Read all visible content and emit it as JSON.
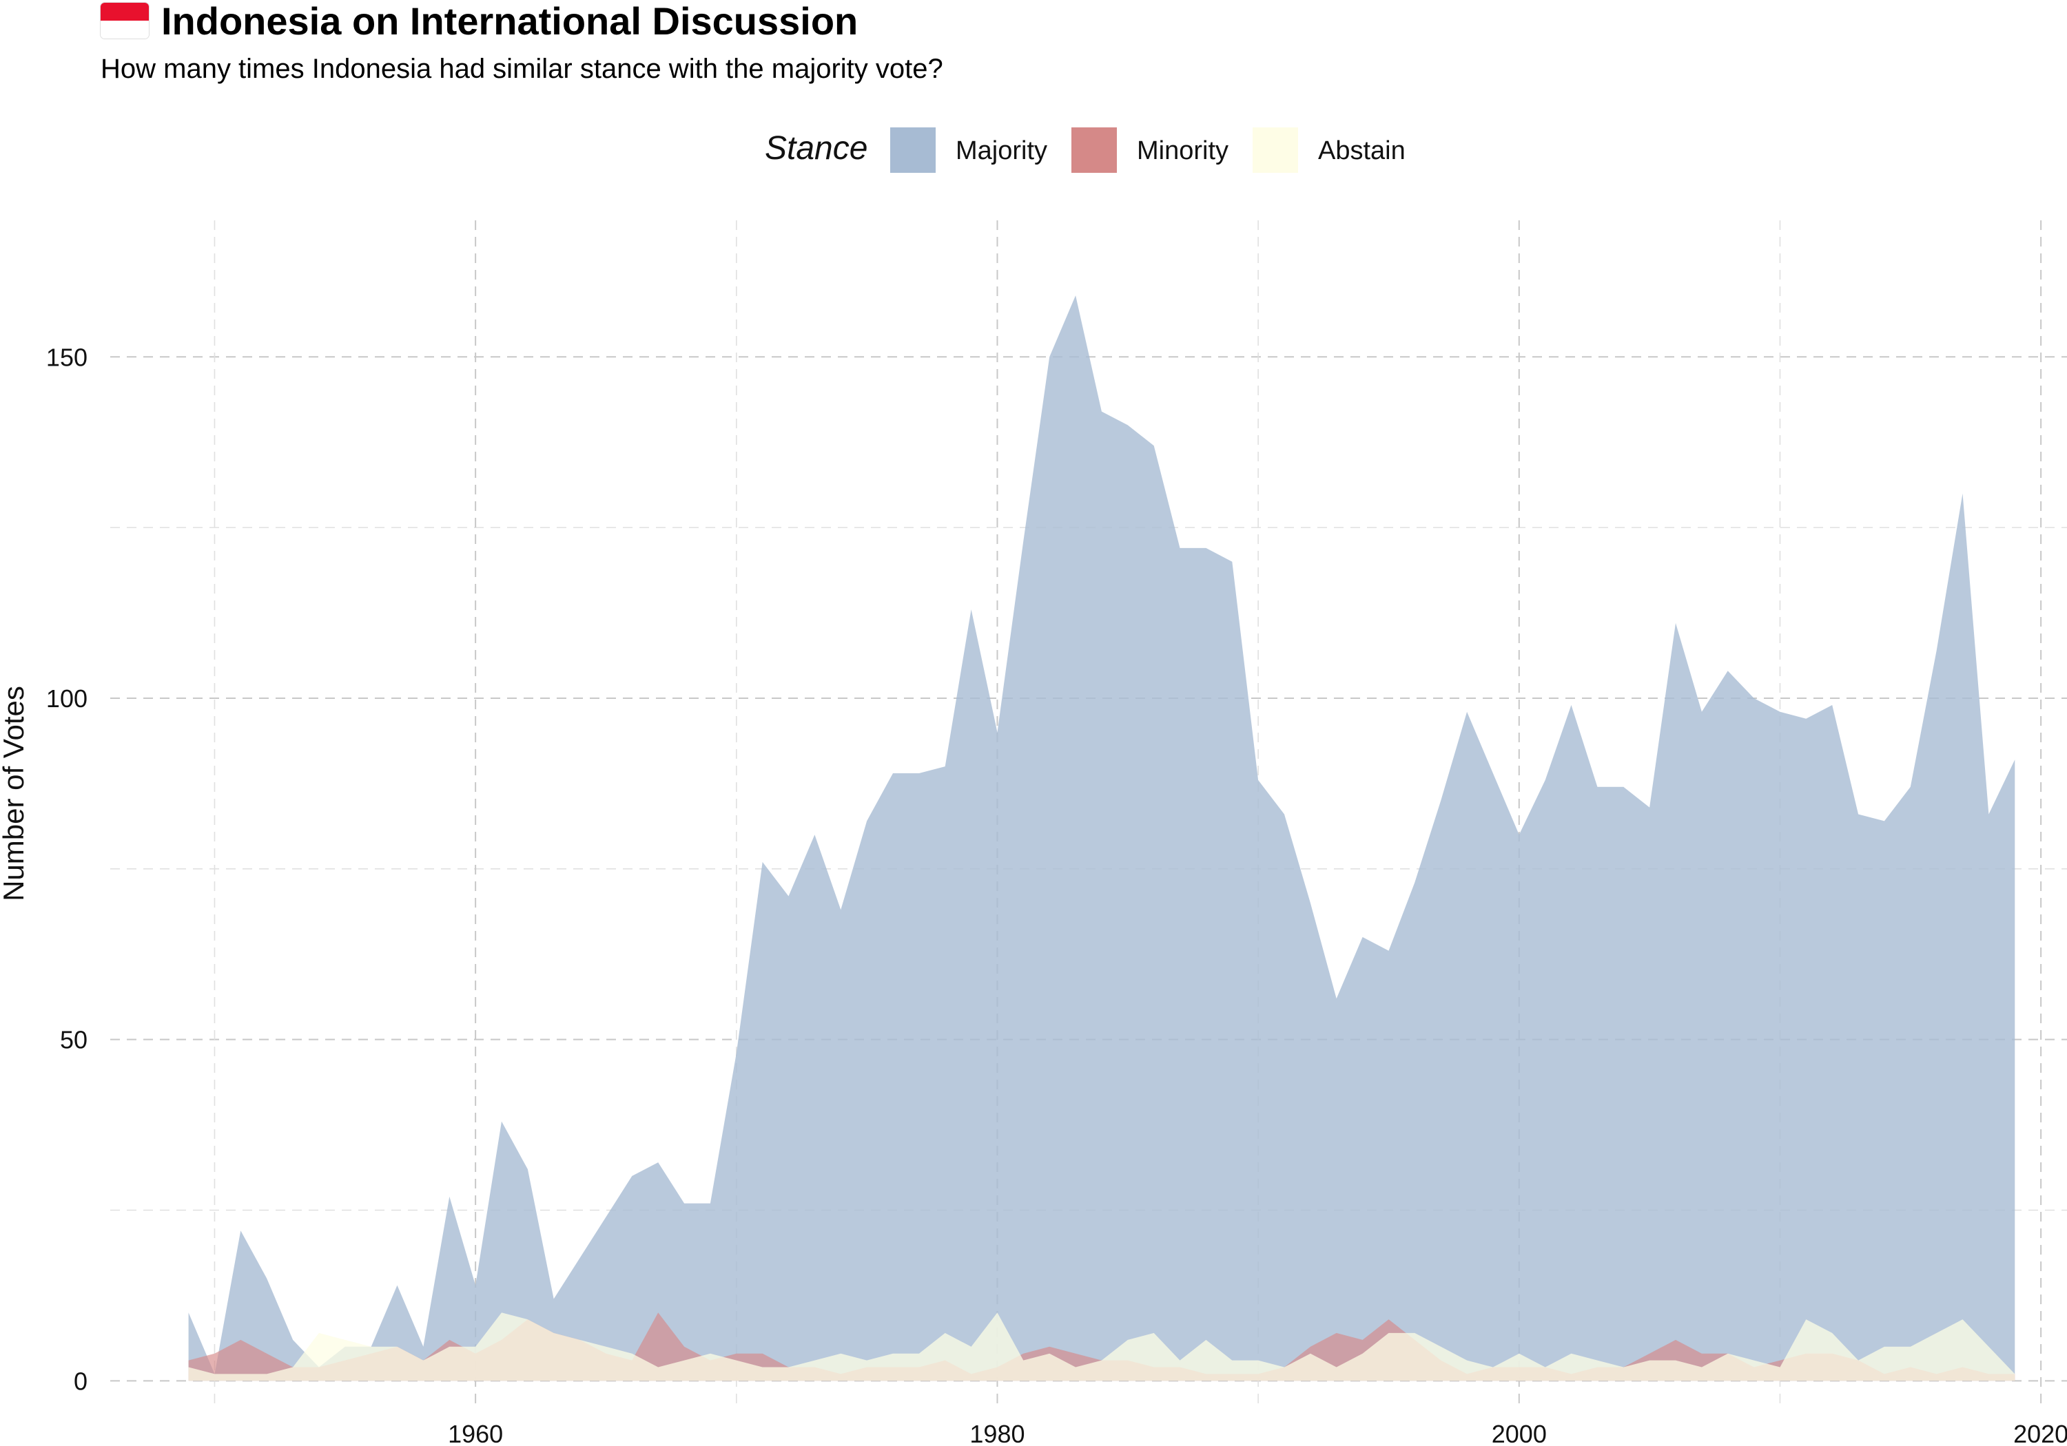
{
  "header": {
    "title": "Indonesia on International Discussion",
    "subtitle": "How many times Indonesia had similar stance with the majority vote?"
  },
  "legend": {
    "title": "Stance",
    "items": [
      {
        "label": "Majority",
        "color": "#a7bbd3"
      },
      {
        "label": "Minority",
        "color": "#d58988"
      },
      {
        "label": "Abstain",
        "color": "#fefde6"
      }
    ]
  },
  "chart_data": {
    "type": "area",
    "title": "Indonesia on International Discussion",
    "subtitle": "How many times Indonesia had similar stance with the majority vote?",
    "xlabel": "",
    "ylabel": "Number of Votes",
    "xlim": [
      1946,
      2021
    ],
    "ylim": [
      -4,
      170
    ],
    "xticks": [
      1960,
      1980,
      2000,
      2020
    ],
    "yticks": [
      0,
      50,
      100,
      150
    ],
    "grid": true,
    "legend_position": "top",
    "series": [
      {
        "name": "Majority",
        "color": "#a7bbd3",
        "opacity": 0.8,
        "points": [
          [
            1949,
            10
          ],
          [
            1950,
            1
          ],
          [
            1951,
            22
          ],
          [
            1952,
            15
          ],
          [
            1953,
            6
          ],
          [
            1954,
            2
          ],
          [
            1955,
            5
          ],
          [
            1956,
            5
          ],
          [
            1957,
            14
          ],
          [
            1958,
            5
          ],
          [
            1959,
            27
          ],
          [
            1960,
            14
          ],
          [
            1961,
            38
          ],
          [
            1962,
            31
          ],
          [
            1963,
            12
          ],
          [
            1964,
            18
          ],
          [
            1965,
            24
          ],
          [
            1966,
            30
          ],
          [
            1967,
            32
          ],
          [
            1968,
            26
          ],
          [
            1969,
            26
          ],
          [
            1970,
            48
          ],
          [
            1971,
            76
          ],
          [
            1972,
            71
          ],
          [
            1973,
            80
          ],
          [
            1974,
            69
          ],
          [
            1975,
            82
          ],
          [
            1976,
            89
          ],
          [
            1977,
            89
          ],
          [
            1978,
            90
          ],
          [
            1979,
            113
          ],
          [
            1980,
            95
          ],
          [
            1981,
            123
          ],
          [
            1982,
            150
          ],
          [
            1983,
            159
          ],
          [
            1984,
            142
          ],
          [
            1985,
            140
          ],
          [
            1986,
            137
          ],
          [
            1987,
            122
          ],
          [
            1988,
            122
          ],
          [
            1989,
            120
          ],
          [
            1990,
            88
          ],
          [
            1991,
            83
          ],
          [
            1992,
            70
          ],
          [
            1993,
            56
          ],
          [
            1994,
            65
          ],
          [
            1995,
            63
          ],
          [
            1996,
            73
          ],
          [
            1997,
            85
          ],
          [
            1998,
            98
          ],
          [
            1999,
            89
          ],
          [
            2000,
            80
          ],
          [
            2001,
            88
          ],
          [
            2002,
            99
          ],
          [
            2003,
            87
          ],
          [
            2004,
            87
          ],
          [
            2005,
            84
          ],
          [
            2006,
            111
          ],
          [
            2007,
            98
          ],
          [
            2008,
            104
          ],
          [
            2009,
            100
          ],
          [
            2010,
            98
          ],
          [
            2011,
            97
          ],
          [
            2012,
            99
          ],
          [
            2013,
            83
          ],
          [
            2014,
            82
          ],
          [
            2015,
            87
          ],
          [
            2016,
            107
          ],
          [
            2017,
            130
          ],
          [
            2018,
            83
          ],
          [
            2019,
            91
          ]
        ]
      },
      {
        "name": "Minority",
        "color": "#d58988",
        "opacity": 0.65,
        "points": [
          [
            1949,
            3
          ],
          [
            1950,
            4
          ],
          [
            1951,
            6
          ],
          [
            1952,
            4
          ],
          [
            1953,
            2
          ],
          [
            1954,
            2
          ],
          [
            1955,
            3
          ],
          [
            1956,
            4
          ],
          [
            1957,
            5
          ],
          [
            1958,
            3
          ],
          [
            1959,
            6
          ],
          [
            1960,
            4
          ],
          [
            1961,
            6
          ],
          [
            1962,
            9
          ],
          [
            1963,
            7
          ],
          [
            1964,
            6
          ],
          [
            1965,
            4
          ],
          [
            1966,
            3
          ],
          [
            1967,
            10
          ],
          [
            1968,
            5
          ],
          [
            1969,
            3
          ],
          [
            1970,
            4
          ],
          [
            1971,
            4
          ],
          [
            1972,
            2
          ],
          [
            1973,
            2
          ],
          [
            1974,
            1
          ],
          [
            1975,
            2
          ],
          [
            1976,
            2
          ],
          [
            1977,
            2
          ],
          [
            1978,
            3
          ],
          [
            1979,
            1
          ],
          [
            1980,
            2
          ],
          [
            1981,
            4
          ],
          [
            1982,
            5
          ],
          [
            1983,
            4
          ],
          [
            1984,
            3
          ],
          [
            1985,
            3
          ],
          [
            1986,
            2
          ],
          [
            1987,
            2
          ],
          [
            1988,
            1
          ],
          [
            1989,
            1
          ],
          [
            1990,
            1
          ],
          [
            1991,
            2
          ],
          [
            1992,
            5
          ],
          [
            1993,
            7
          ],
          [
            1994,
            6
          ],
          [
            1995,
            9
          ],
          [
            1996,
            6
          ],
          [
            1997,
            3
          ],
          [
            1998,
            1
          ],
          [
            1999,
            2
          ],
          [
            2000,
            2
          ],
          [
            2001,
            2
          ],
          [
            2002,
            1
          ],
          [
            2003,
            2
          ],
          [
            2004,
            2
          ],
          [
            2005,
            4
          ],
          [
            2006,
            6
          ],
          [
            2007,
            4
          ],
          [
            2008,
            4
          ],
          [
            2009,
            2
          ],
          [
            2010,
            3
          ],
          [
            2011,
            4
          ],
          [
            2012,
            4
          ],
          [
            2013,
            3
          ],
          [
            2014,
            1
          ],
          [
            2015,
            2
          ],
          [
            2016,
            1
          ],
          [
            2017,
            2
          ],
          [
            2018,
            1
          ],
          [
            2019,
            1
          ]
        ]
      },
      {
        "name": "Abstain",
        "color": "#fefde6",
        "opacity": 0.75,
        "points": [
          [
            1949,
            2
          ],
          [
            1950,
            1
          ],
          [
            1951,
            1
          ],
          [
            1952,
            1
          ],
          [
            1953,
            2
          ],
          [
            1954,
            7
          ],
          [
            1955,
            6
          ],
          [
            1956,
            5
          ],
          [
            1957,
            5
          ],
          [
            1958,
            3
          ],
          [
            1959,
            5
          ],
          [
            1960,
            5
          ],
          [
            1961,
            10
          ],
          [
            1962,
            9
          ],
          [
            1963,
            7
          ],
          [
            1964,
            6
          ],
          [
            1965,
            5
          ],
          [
            1966,
            4
          ],
          [
            1967,
            2
          ],
          [
            1968,
            3
          ],
          [
            1969,
            4
          ],
          [
            1970,
            3
          ],
          [
            1971,
            2
          ],
          [
            1972,
            2
          ],
          [
            1973,
            3
          ],
          [
            1974,
            4
          ],
          [
            1975,
            3
          ],
          [
            1976,
            4
          ],
          [
            1977,
            4
          ],
          [
            1978,
            7
          ],
          [
            1979,
            5
          ],
          [
            1980,
            10
          ],
          [
            1981,
            3
          ],
          [
            1982,
            4
          ],
          [
            1983,
            2
          ],
          [
            1984,
            3
          ],
          [
            1985,
            6
          ],
          [
            1986,
            7
          ],
          [
            1987,
            3
          ],
          [
            1988,
            6
          ],
          [
            1989,
            3
          ],
          [
            1990,
            3
          ],
          [
            1991,
            2
          ],
          [
            1992,
            4
          ],
          [
            1993,
            2
          ],
          [
            1994,
            4
          ],
          [
            1995,
            7
          ],
          [
            1996,
            7
          ],
          [
            1997,
            5
          ],
          [
            1998,
            3
          ],
          [
            1999,
            2
          ],
          [
            2000,
            4
          ],
          [
            2001,
            2
          ],
          [
            2002,
            4
          ],
          [
            2003,
            3
          ],
          [
            2004,
            2
          ],
          [
            2005,
            3
          ],
          [
            2006,
            3
          ],
          [
            2007,
            2
          ],
          [
            2008,
            4
          ],
          [
            2009,
            3
          ],
          [
            2010,
            2
          ],
          [
            2011,
            9
          ],
          [
            2012,
            7
          ],
          [
            2013,
            3
          ],
          [
            2014,
            5
          ],
          [
            2015,
            5
          ],
          [
            2016,
            7
          ],
          [
            2017,
            9
          ],
          [
            2018,
            5
          ],
          [
            2019,
            1
          ]
        ]
      }
    ]
  }
}
